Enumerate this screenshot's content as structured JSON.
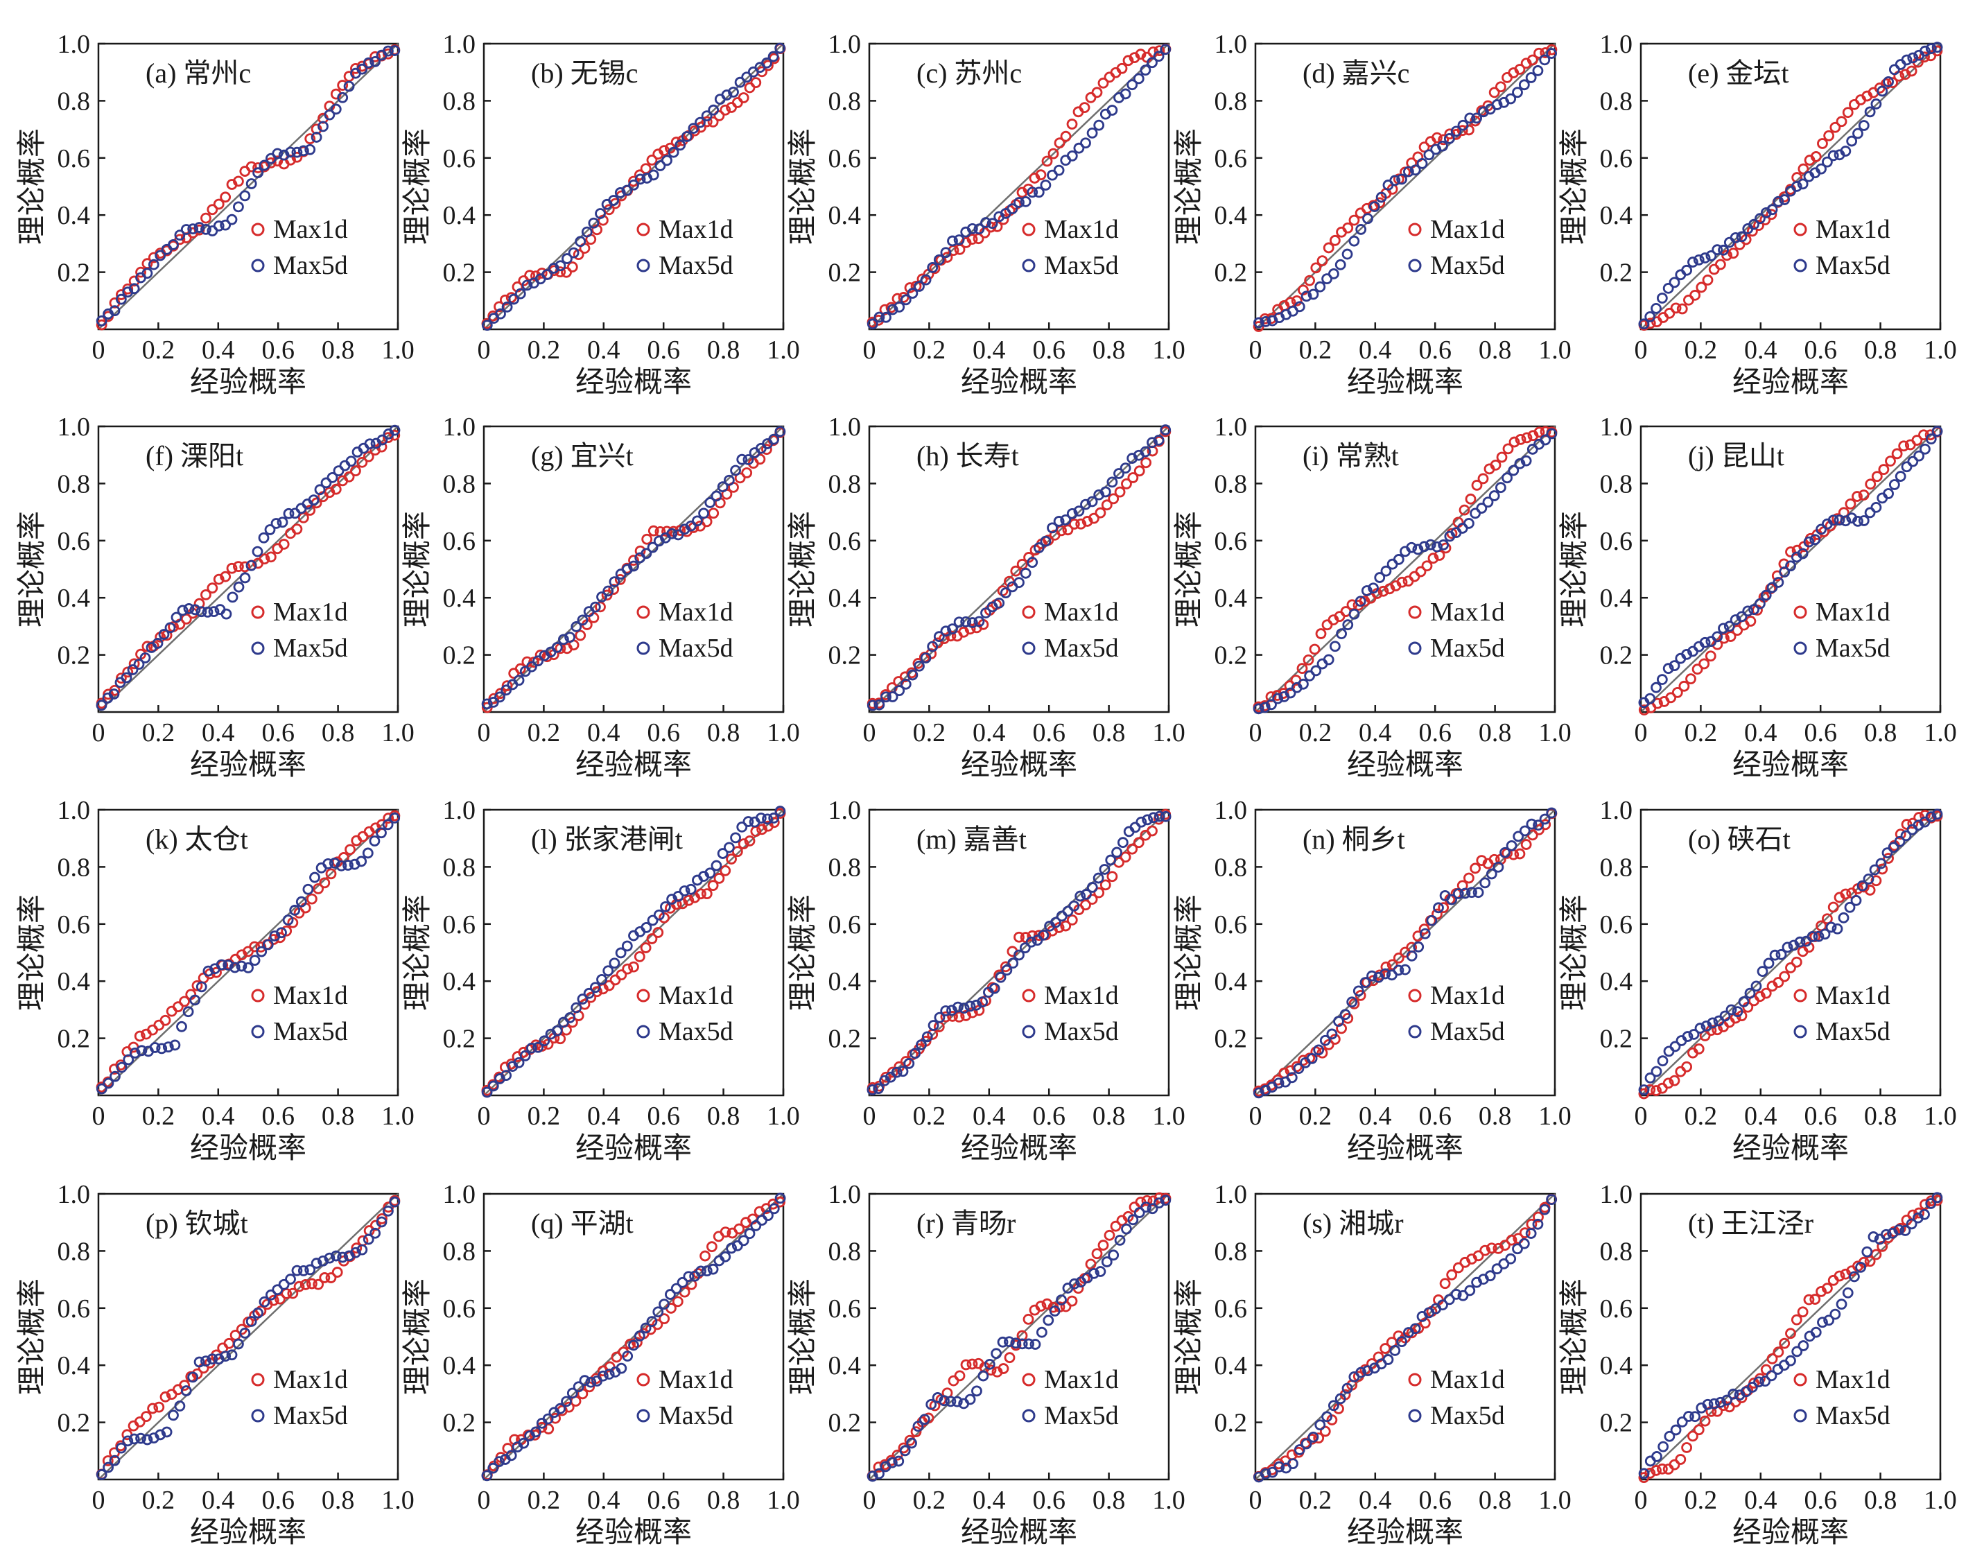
{
  "figure": {
    "x_axis_title": "经验概率",
    "y_axis_title": "理论概率",
    "x_ticks": [
      "0",
      "0.2",
      "0.4",
      "0.6",
      "0.8",
      "1.0"
    ],
    "y_ticks": [
      "0.2",
      "0.4",
      "0.6",
      "0.8",
      "1.0"
    ],
    "legend": [
      {
        "name": "Max1d",
        "color": "#d62b2b"
      },
      {
        "name": "Max5d",
        "color": "#2e3a8c"
      }
    ],
    "reference_line_color": "#6e6e6e"
  },
  "chart_data": [
    {
      "type": "scatter",
      "label": "(a) 常州c",
      "xlim": [
        0,
        1
      ],
      "ylim": [
        0,
        1
      ]
    },
    {
      "type": "scatter",
      "label": "(b) 无锡c",
      "xlim": [
        0,
        1
      ],
      "ylim": [
        0,
        1
      ]
    },
    {
      "type": "scatter",
      "label": "(c) 苏州c",
      "xlim": [
        0,
        1
      ],
      "ylim": [
        0,
        1
      ]
    },
    {
      "type": "scatter",
      "label": "(d) 嘉兴c",
      "xlim": [
        0,
        1
      ],
      "ylim": [
        0,
        1
      ]
    },
    {
      "type": "scatter",
      "label": "(e) 金坛t",
      "xlim": [
        0,
        1
      ],
      "ylim": [
        0,
        1
      ]
    },
    {
      "type": "scatter",
      "label": "(f) 溧阳t",
      "xlim": [
        0,
        1
      ],
      "ylim": [
        0,
        1
      ]
    },
    {
      "type": "scatter",
      "label": "(g) 宜兴t",
      "xlim": [
        0,
        1
      ],
      "ylim": [
        0,
        1
      ]
    },
    {
      "type": "scatter",
      "label": "(h) 长寿t",
      "xlim": [
        0,
        1
      ],
      "ylim": [
        0,
        1
      ]
    },
    {
      "type": "scatter",
      "label": "(i) 常熟t",
      "xlim": [
        0,
        1
      ],
      "ylim": [
        0,
        1
      ]
    },
    {
      "type": "scatter",
      "label": "(j) 昆山t",
      "xlim": [
        0,
        1
      ],
      "ylim": [
        0,
        1
      ]
    },
    {
      "type": "scatter",
      "label": "(k) 太仓t",
      "xlim": [
        0,
        1
      ],
      "ylim": [
        0,
        1
      ]
    },
    {
      "type": "scatter",
      "label": "(l) 张家港闸t",
      "xlim": [
        0,
        1
      ],
      "ylim": [
        0,
        1
      ]
    },
    {
      "type": "scatter",
      "label": "(m) 嘉善t",
      "xlim": [
        0,
        1
      ],
      "ylim": [
        0,
        1
      ]
    },
    {
      "type": "scatter",
      "label": "(n) 桐乡t",
      "xlim": [
        0,
        1
      ],
      "ylim": [
        0,
        1
      ]
    },
    {
      "type": "scatter",
      "label": "(o) 硖石t",
      "xlim": [
        0,
        1
      ],
      "ylim": [
        0,
        1
      ]
    },
    {
      "type": "scatter",
      "label": "(p) 钦城t",
      "xlim": [
        0,
        1
      ],
      "ylim": [
        0,
        1
      ]
    },
    {
      "type": "scatter",
      "label": "(q) 平湖t",
      "xlim": [
        0,
        1
      ],
      "ylim": [
        0,
        1
      ]
    },
    {
      "type": "scatter",
      "label": "(r) 青旸r",
      "xlim": [
        0,
        1
      ],
      "ylim": [
        0,
        1
      ]
    },
    {
      "type": "scatter",
      "label": "(s) 湘城r",
      "xlim": [
        0,
        1
      ],
      "ylim": [
        0,
        1
      ]
    },
    {
      "type": "scatter",
      "label": "(t) 王江泾r",
      "xlim": [
        0,
        1
      ],
      "ylim": [
        0,
        1
      ]
    }
  ]
}
